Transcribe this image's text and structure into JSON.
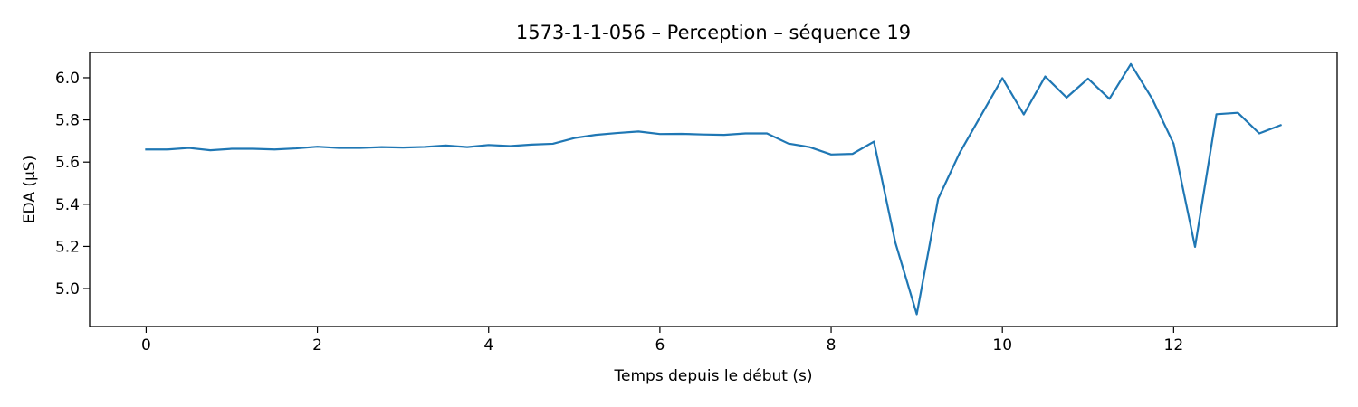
{
  "chart_data": {
    "type": "line",
    "title": "1573-1-1-056 – Perception – séquence 19",
    "xlabel": "Temps depuis le début (s)",
    "ylabel": "EDA (µS)",
    "xlim": [
      -0.66,
      13.91
    ],
    "ylim": [
      4.82,
      6.12
    ],
    "xticks": [
      0,
      2,
      4,
      6,
      8,
      10,
      12
    ],
    "xtick_labels": [
      "0",
      "2",
      "4",
      "6",
      "8",
      "10",
      "12"
    ],
    "yticks": [
      5.0,
      5.2,
      5.4,
      5.6,
      5.8,
      6.0
    ],
    "ytick_labels": [
      "5.0",
      "5.2",
      "5.4",
      "5.6",
      "5.8",
      "6.0"
    ],
    "grid": false,
    "series": [
      {
        "color": "#1f77b4",
        "x": [
          0,
          0.25,
          0.5,
          0.75,
          1.0,
          1.25,
          1.5,
          1.75,
          2.0,
          2.25,
          2.5,
          2.75,
          3.0,
          3.25,
          3.5,
          3.75,
          4.0,
          4.25,
          4.5,
          4.75,
          5.0,
          5.25,
          5.5,
          5.75,
          6.0,
          6.25,
          6.5,
          6.75,
          7.0,
          7.25,
          7.5,
          7.75,
          8.0,
          8.25,
          8.5,
          8.75,
          9.0,
          9.25,
          9.5,
          9.75,
          10.0,
          10.25,
          10.5,
          10.75,
          11.0,
          11.25,
          11.5,
          11.75,
          12.0,
          12.25,
          12.5,
          12.75,
          13.0,
          13.25
        ],
        "values": [
          5.66,
          5.66,
          5.667,
          5.656,
          5.663,
          5.663,
          5.66,
          5.665,
          5.673,
          5.667,
          5.667,
          5.671,
          5.669,
          5.672,
          5.679,
          5.671,
          5.681,
          5.676,
          5.683,
          5.687,
          5.714,
          5.729,
          5.738,
          5.745,
          5.733,
          5.734,
          5.731,
          5.729,
          5.736,
          5.736,
          5.688,
          5.671,
          5.636,
          5.639,
          5.697,
          5.218,
          4.878,
          5.426,
          5.643,
          5.821,
          5.998,
          5.826,
          6.006,
          5.906,
          5.996,
          5.9,
          6.065,
          5.9,
          5.687,
          5.198,
          5.827,
          5.834,
          5.736,
          5.775
        ]
      }
    ]
  }
}
